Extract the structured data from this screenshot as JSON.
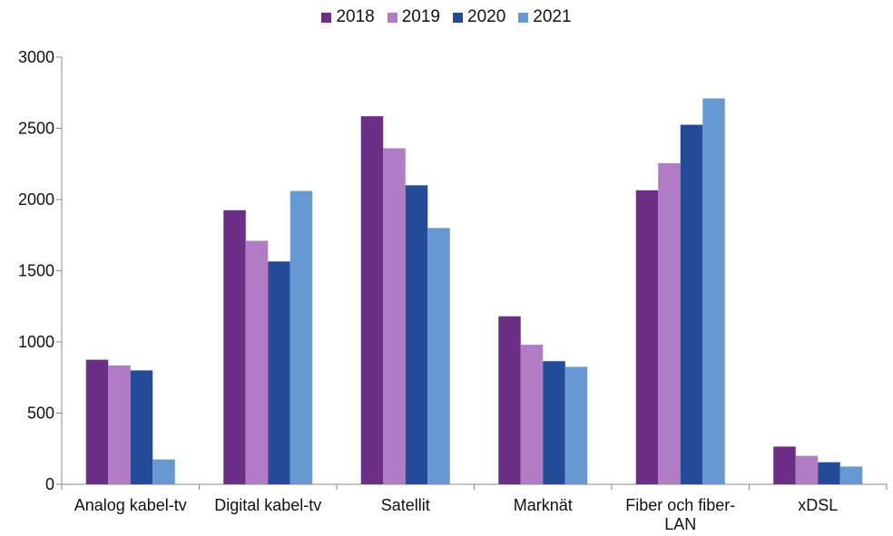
{
  "chart_data": {
    "type": "bar",
    "categories": [
      "Analog kabel-tv",
      "Digital kabel-tv",
      "Satellit",
      "Marknät",
      "Fiber och fiber-LAN",
      "xDSL"
    ],
    "category_lines": [
      [
        "Analog kabel-tv"
      ],
      [
        "Digital kabel-tv"
      ],
      [
        "Satellit"
      ],
      [
        "Marknät"
      ],
      [
        "Fiber och fiber-",
        "LAN"
      ],
      [
        "xDSL"
      ]
    ],
    "series": [
      {
        "name": "2018",
        "color": "#6d2f86",
        "values": [
          875,
          1925,
          2585,
          1180,
          2065,
          265
        ]
      },
      {
        "name": "2019",
        "color": "#b07cc6",
        "values": [
          835,
          1710,
          2360,
          980,
          2255,
          200
        ]
      },
      {
        "name": "2020",
        "color": "#244b97",
        "values": [
          800,
          1565,
          2100,
          865,
          2525,
          155
        ]
      },
      {
        "name": "2021",
        "color": "#6699d1",
        "values": [
          175,
          2060,
          1800,
          825,
          2710,
          125
        ]
      }
    ],
    "yticks": [
      0,
      500,
      1000,
      1500,
      2000,
      2500,
      3000
    ],
    "ylim": [
      0,
      3000
    ],
    "title": "",
    "xlabel": "",
    "ylabel": "",
    "legend_position": "top",
    "grid": false
  }
}
